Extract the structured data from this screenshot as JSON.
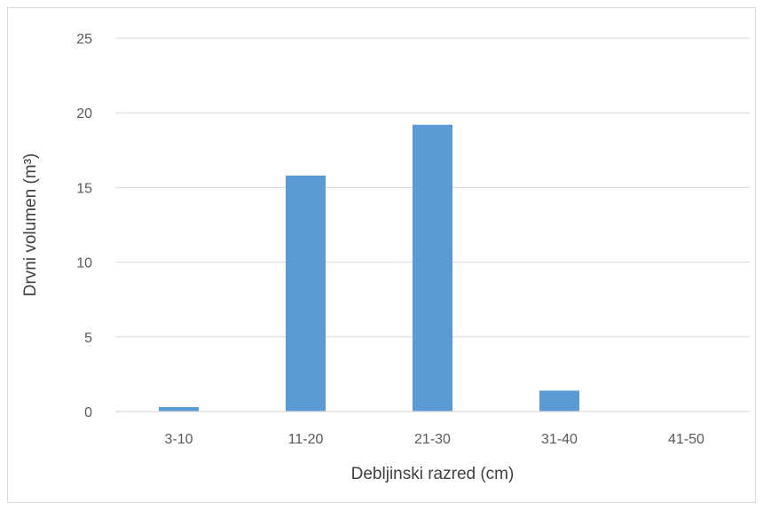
{
  "chart_data": {
    "type": "bar",
    "title": "",
    "xlabel": "Debljinski razred (cm)",
    "ylabel": "Drvni volumen (m³)",
    "categories": [
      "3-10",
      "11-20",
      "21-30",
      "31-40",
      "41-50"
    ],
    "values": [
      0.3,
      15.8,
      19.2,
      1.4,
      0
    ],
    "ylim": [
      0,
      25
    ],
    "yticks": [
      0,
      5,
      10,
      15,
      20,
      25
    ],
    "grid": true,
    "legend": "none",
    "bar_color": "#5b9bd5"
  }
}
